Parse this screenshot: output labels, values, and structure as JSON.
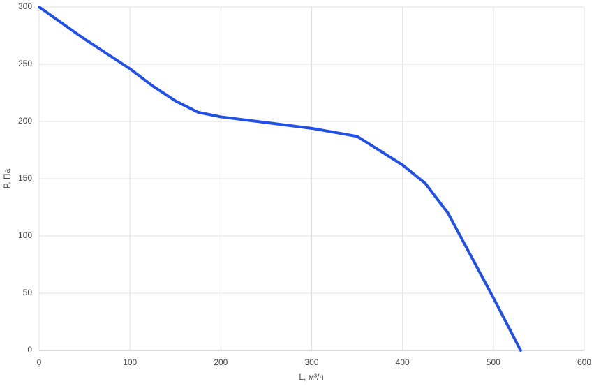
{
  "chart_data": {
    "type": "line",
    "x_label": "L, м³/ч",
    "y_label": "P, Па",
    "series": [
      {
        "color": "#2150e8",
        "x": [
          0,
          25,
          50,
          75,
          100,
          125,
          150,
          175,
          200,
          250,
          300,
          350,
          400,
          425,
          450,
          500,
          530
        ],
        "values": [
          300,
          286,
          272,
          259,
          246,
          231,
          218,
          208,
          204,
          199,
          194,
          187,
          162,
          146,
          120,
          46,
          0
        ]
      }
    ],
    "xlim": [
      0,
      600
    ],
    "xticks": [
      0,
      100,
      200,
      300,
      400,
      500,
      600
    ],
    "ylim": [
      0,
      300
    ],
    "yticks": [
      0,
      50,
      100,
      150,
      200,
      250,
      300
    ],
    "grid": true
  }
}
